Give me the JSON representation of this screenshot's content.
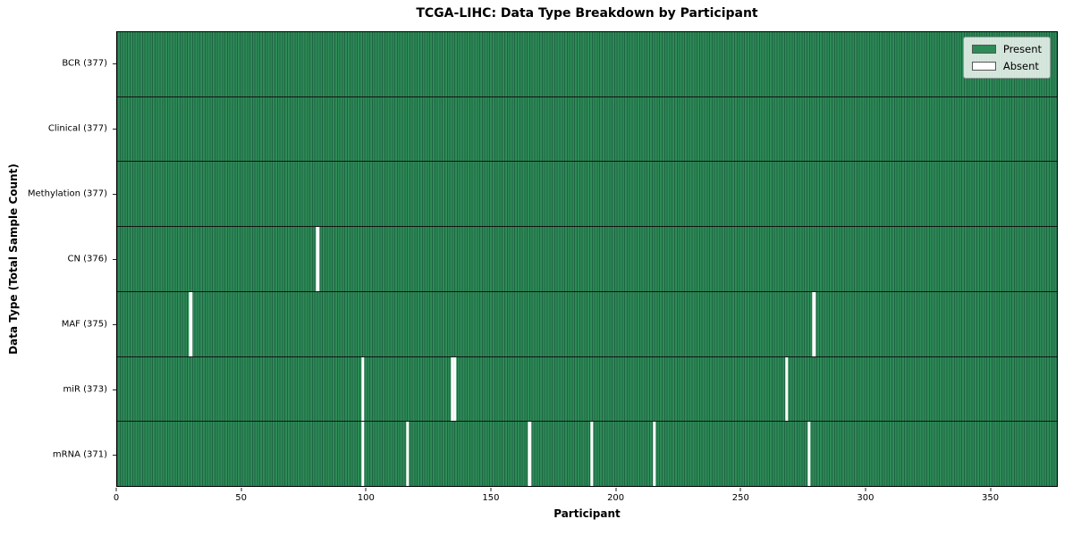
{
  "chart_data": {
    "type": "heatmap",
    "title": "TCGA-LIHC: Data Type Breakdown by Participant",
    "xlabel": "Participant",
    "ylabel": "Data Type (Total Sample Count)",
    "n_participants": 377,
    "x_ticks": [
      0,
      50,
      100,
      150,
      200,
      250,
      300,
      350
    ],
    "x_range": [
      0,
      377
    ],
    "grid": false,
    "legend_position": "upper right",
    "colors": {
      "present": "#2e8b57",
      "present_edge": "#1f6443",
      "absent": "#ffffff",
      "row_divider": "#141414"
    },
    "legend": [
      {
        "label": "Present",
        "color": "#2e8b57"
      },
      {
        "label": "Absent",
        "color": "#ffffff"
      }
    ],
    "rows": [
      {
        "name": "bcr",
        "label": "BCR (377)",
        "total": 377,
        "absent_participants": []
      },
      {
        "name": "clinical",
        "label": "Clinical (377)",
        "total": 377,
        "absent_participants": []
      },
      {
        "name": "methylation",
        "label": "Methylation (377)",
        "total": 377,
        "absent_participants": []
      },
      {
        "name": "cn",
        "label": "CN (376)",
        "total": 376,
        "absent_participants": [
          80
        ]
      },
      {
        "name": "maf",
        "label": "MAF (375)",
        "total": 375,
        "absent_participants": [
          29,
          279
        ]
      },
      {
        "name": "mir",
        "label": "miR (373)",
        "total": 373,
        "absent_participants": [
          98,
          134,
          135,
          268
        ]
      },
      {
        "name": "mrna",
        "label": "mRNA (371)",
        "total": 371,
        "absent_participants": [
          98,
          116,
          165,
          190,
          215,
          277
        ]
      }
    ]
  }
}
